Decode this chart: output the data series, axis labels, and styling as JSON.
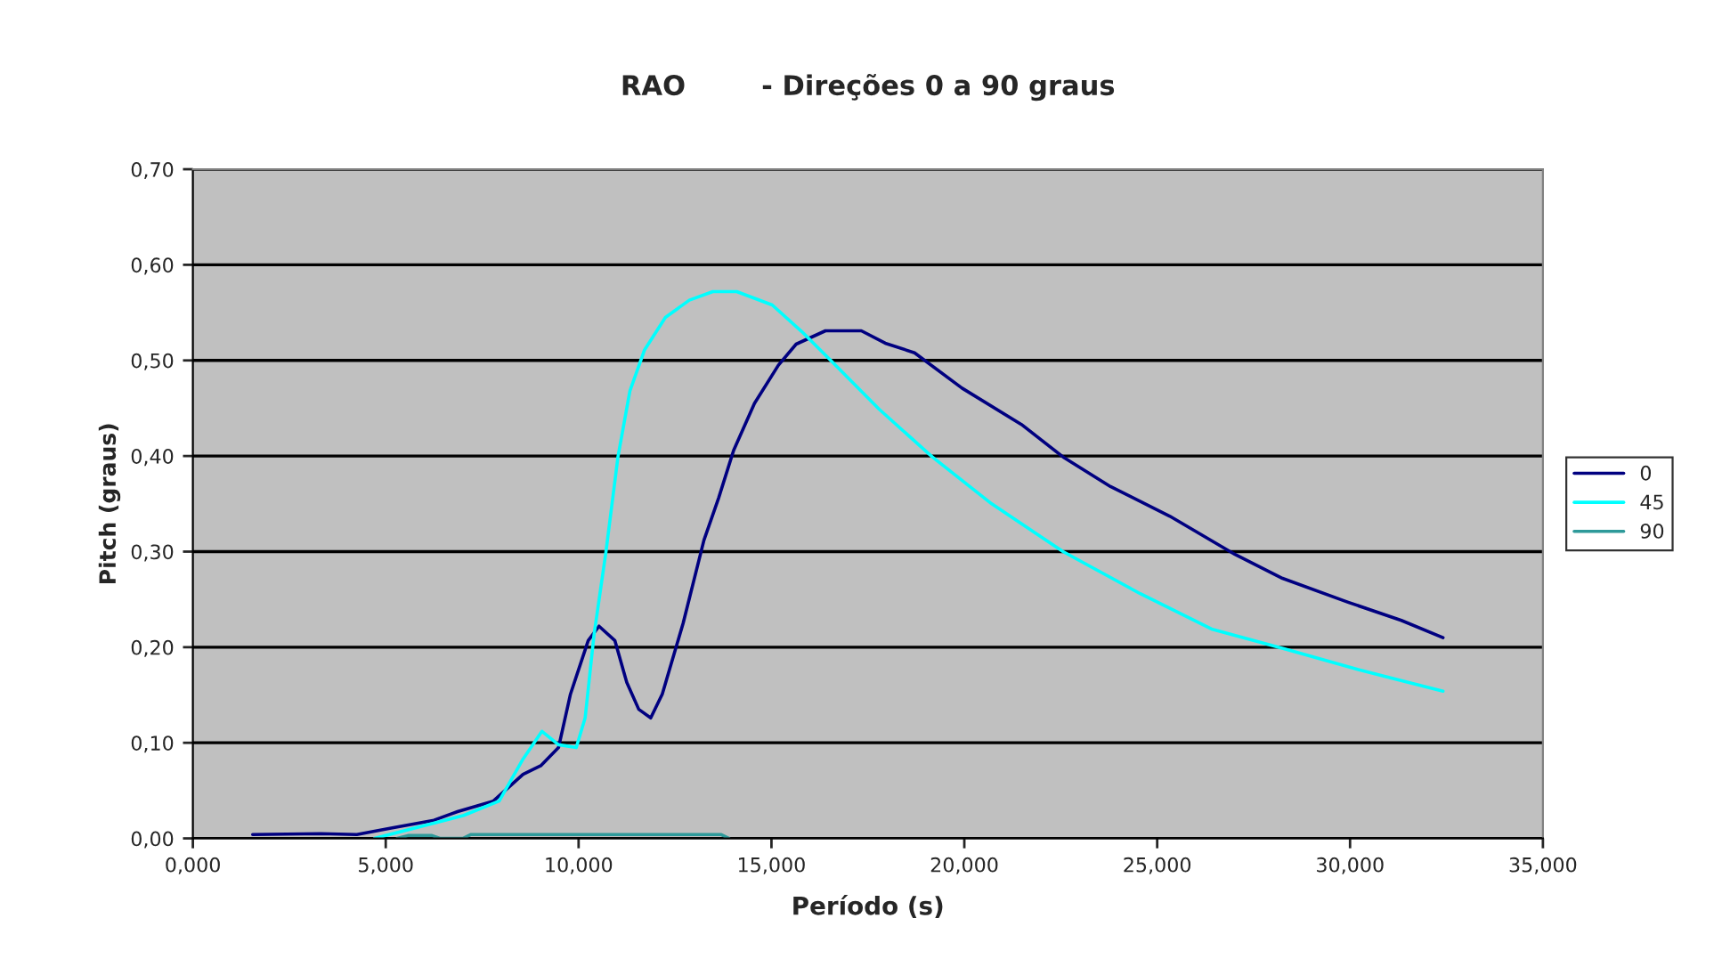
{
  "chart_data": {
    "type": "line",
    "title": "RAO        - Direções 0 a 90 graus",
    "xlabel": "Período (s)",
    "ylabel": "Pitch (graus)",
    "xlim": [
      0,
      35
    ],
    "xticks": [
      {
        "value": 0,
        "label": "0,000"
      },
      {
        "value": 5,
        "label": "5,000"
      },
      {
        "value": 10,
        "label": "10,000"
      },
      {
        "value": 15,
        "label": "15,000"
      },
      {
        "value": 20,
        "label": "20,000"
      },
      {
        "value": 25,
        "label": "25,000"
      },
      {
        "value": 30,
        "label": "30,000"
      },
      {
        "value": 35,
        "label": "35,000"
      }
    ],
    "ylim": [
      0,
      0.7
    ],
    "yticks": [
      {
        "value": 0,
        "label": "0,00"
      },
      {
        "value": 0.1,
        "label": "0,10"
      },
      {
        "value": 0.2,
        "label": "0,20"
      },
      {
        "value": 0.3,
        "label": "0,30"
      },
      {
        "value": 0.4,
        "label": "0,40"
      },
      {
        "value": 0.5,
        "label": "0,50"
      },
      {
        "value": 0.6,
        "label": "0,60"
      },
      {
        "value": 0.7,
        "label": "0,70"
      }
    ],
    "grid": "y",
    "legend": "right",
    "marker": "none",
    "line_style": "solid",
    "series": [
      {
        "name": "0",
        "color": "#000080",
        "x": [
          1.55,
          3.32,
          4.25,
          5.17,
          6.25,
          6.86,
          7.79,
          8.56,
          9.02,
          9.48,
          9.79,
          10.25,
          10.53,
          10.94,
          11.25,
          11.56,
          11.87,
          12.17,
          12.71,
          13.25,
          13.63,
          14.02,
          14.56,
          15.18,
          15.64,
          16.4,
          17.33,
          17.95,
          18.71,
          19.94,
          21.48,
          22.56,
          23.79,
          25.33,
          27.02,
          28.25,
          29.95,
          31.33,
          32.41
        ],
        "values": [
          0.004,
          0.005,
          0.004,
          0.011,
          0.019,
          0.028,
          0.039,
          0.067,
          0.076,
          0.095,
          0.151,
          0.207,
          0.222,
          0.207,
          0.163,
          0.135,
          0.126,
          0.151,
          0.225,
          0.312,
          0.356,
          0.406,
          0.455,
          0.495,
          0.517,
          0.531,
          0.531,
          0.518,
          0.508,
          0.471,
          0.433,
          0.399,
          0.368,
          0.337,
          0.297,
          0.272,
          0.247,
          0.228,
          0.21
        ]
      },
      {
        "name": "45",
        "color": "#00ffff",
        "x": [
          4.71,
          7.02,
          7.94,
          8.56,
          9.05,
          9.48,
          9.94,
          10.17,
          10.4,
          10.71,
          11.02,
          11.33,
          11.71,
          12.25,
          12.87,
          13.48,
          14.1,
          15.02,
          15.79,
          16.56,
          17.79,
          19.17,
          20.71,
          22.56,
          24.56,
          26.41,
          28.41,
          30.26,
          32.41
        ],
        "values": [
          0.0,
          0.024,
          0.039,
          0.083,
          0.112,
          0.098,
          0.095,
          0.126,
          0.213,
          0.3,
          0.399,
          0.468,
          0.511,
          0.545,
          0.563,
          0.572,
          0.572,
          0.558,
          0.53,
          0.499,
          0.449,
          0.399,
          0.35,
          0.3,
          0.256,
          0.219,
          0.197,
          0.176,
          0.154
        ]
      },
      {
        "name": "90",
        "color": "#2e9a9a",
        "x": [
          5.3,
          5.6,
          6.2,
          6.4,
          7.0,
          7.2,
          13.7,
          13.9
        ],
        "values": [
          0.0,
          0.003,
          0.003,
          0.0,
          0.0,
          0.004,
          0.004,
          0.0
        ]
      }
    ]
  }
}
